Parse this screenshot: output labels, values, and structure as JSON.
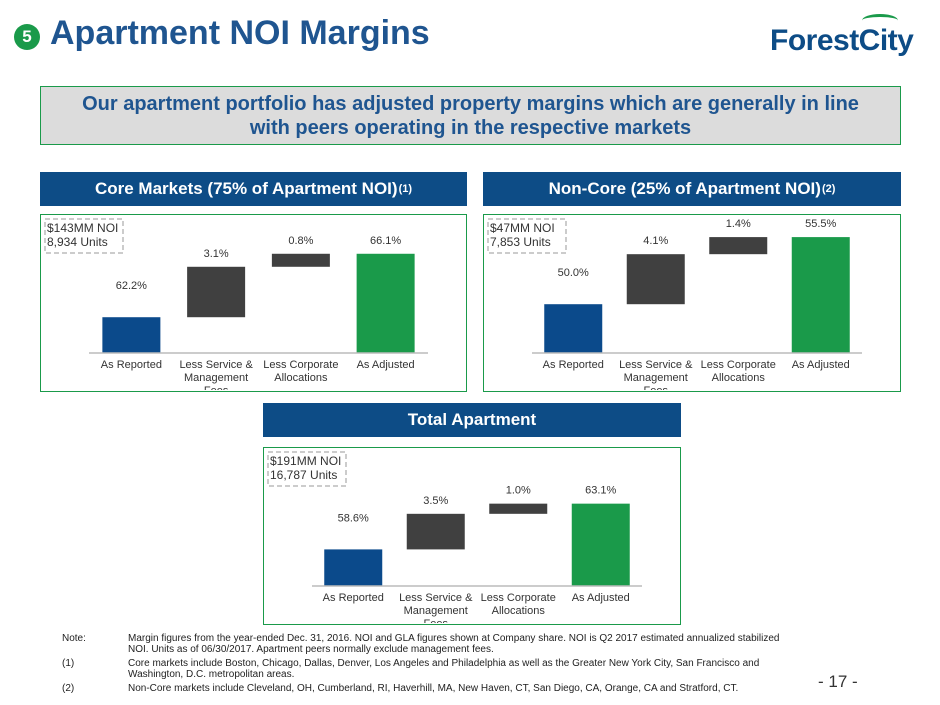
{
  "header": {
    "section": "5",
    "title": "Apartment NOI Margins",
    "logo": "ForestCity"
  },
  "banner": "Our apartment portfolio has adjusted property margins which are generally in line with peers operating in the respective markets",
  "chart_data": [
    {
      "type": "waterfall",
      "title": "Core Markets (75% of Apartment NOI)",
      "title_note": "(1)",
      "annotation": [
        "$143MM NOI",
        "8,934 Units"
      ],
      "categories": [
        "As Reported",
        "Less Service & Management Fees",
        "Less Corporate Allocations",
        "As Adjusted"
      ],
      "values": [
        62.2,
        3.1,
        0.8,
        66.1
      ],
      "value_labels": [
        "62.2%",
        "3.1%",
        "0.8%",
        "66.1%"
      ],
      "colors": [
        "#0b4a8b",
        "#404040",
        "#404040",
        "#1a9a4a"
      ],
      "ylim": [
        60,
        67.5
      ]
    },
    {
      "type": "waterfall",
      "title": "Non-Core (25% of Apartment NOI)",
      "title_note": "(2)",
      "annotation": [
        "$47MM NOI",
        "7,853 Units"
      ],
      "categories": [
        "As Reported",
        "Less Service & Management Fees",
        "Less Corporate Allocations",
        "As Adjusted"
      ],
      "values": [
        50.0,
        4.1,
        1.4,
        55.5
      ],
      "value_labels": [
        "50.0%",
        "4.1%",
        "1.4%",
        "55.5%"
      ],
      "colors": [
        "#0b4a8b",
        "#404040",
        "#404040",
        "#1a9a4a"
      ],
      "ylim": [
        46,
        56
      ]
    },
    {
      "type": "waterfall",
      "title": "Total Apartment",
      "annotation": [
        "$191MM NOI",
        "16,787 Units"
      ],
      "categories": [
        "As Reported",
        "Less Service & Management Fees",
        "Less Corporate Allocations",
        "As Adjusted"
      ],
      "values": [
        58.6,
        3.5,
        1.0,
        63.1
      ],
      "value_labels": [
        "58.6%",
        "3.5%",
        "1.0%",
        "63.1%"
      ],
      "colors": [
        "#0b4a8b",
        "#404040",
        "#404040",
        "#1a9a4a"
      ],
      "ylim": [
        55,
        67
      ]
    }
  ],
  "notes": [
    {
      "marker": "Note:",
      "text": "Margin figures from the year-ended Dec. 31, 2016. NOI and GLA figures shown at Company share. NOI is Q2 2017 estimated annualized stabilized NOI. Units as of 06/30/2017. Apartment peers normally exclude management fees."
    },
    {
      "marker": "(1)",
      "text": "Core markets include Boston, Chicago, Dallas, Denver, Los Angeles and Philadelphia as well as the Greater New York City, San Francisco and Washington, D.C. metropolitan areas."
    },
    {
      "marker": "(2)",
      "text": "Non-Core markets include Cleveland, OH, Cumberland, RI, Haverhill, MA, New Haven, CT, San Diego, CA, Orange, CA and Stratford, CT."
    }
  ],
  "page_number": "- 17 -"
}
